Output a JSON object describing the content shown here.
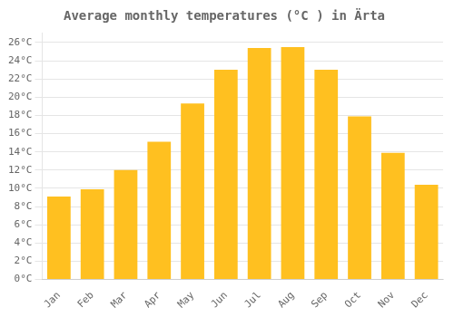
{
  "chart_data": {
    "type": "bar",
    "title": "Average monthly temperatures (°C ) in Ärta",
    "categories": [
      "Jan",
      "Feb",
      "Mar",
      "Apr",
      "May",
      "Jun",
      "Jul",
      "Aug",
      "Sep",
      "Oct",
      "Nov",
      "Dec"
    ],
    "values": [
      9.1,
      9.9,
      12.0,
      15.1,
      19.3,
      23.0,
      25.4,
      25.5,
      23.0,
      17.9,
      13.9,
      10.4
    ],
    "color": "#FFC020",
    "ylim": [
      0,
      27
    ],
    "yticks": [
      {
        "value": 0,
        "label": "0°C"
      },
      {
        "value": 2,
        "label": "2°C"
      },
      {
        "value": 4,
        "label": "4°C"
      },
      {
        "value": 6,
        "label": "6°C"
      },
      {
        "value": 8,
        "label": "8°C"
      },
      {
        "value": 10,
        "label": "10°C"
      },
      {
        "value": 12,
        "label": "12°C"
      },
      {
        "value": 14,
        "label": "14°C"
      },
      {
        "value": 16,
        "label": "16°C"
      },
      {
        "value": 18,
        "label": "18°C"
      },
      {
        "value": 20,
        "label": "20°C"
      },
      {
        "value": 22,
        "label": "22°C"
      },
      {
        "value": 24,
        "label": "24°C"
      },
      {
        "value": 26,
        "label": "26°C"
      }
    ],
    "grid": true
  }
}
